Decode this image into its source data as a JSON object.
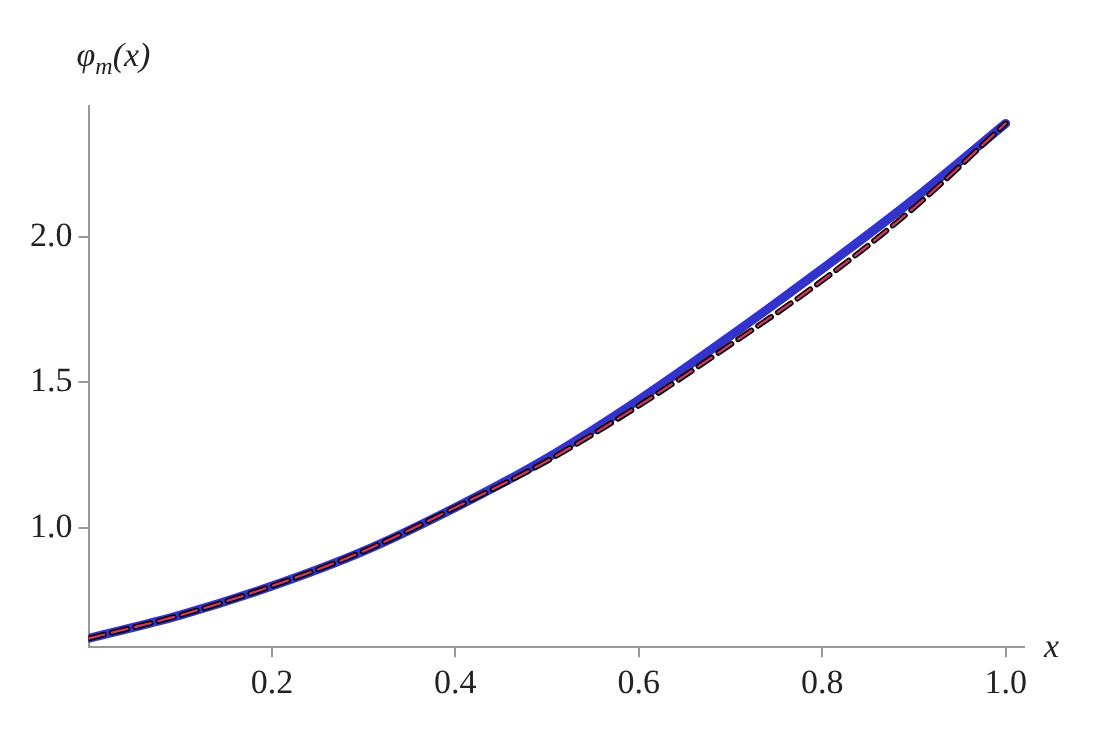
{
  "chart_data": {
    "type": "line",
    "xlabel": "x",
    "ylabel": "φ$_{m}$(x)",
    "x": [
      0,
      0.1,
      0.2,
      0.3,
      0.4,
      0.5,
      0.6,
      0.7,
      0.8,
      0.9,
      1.0
    ],
    "series": [
      {
        "color": "#3333cc",
        "line_style": "solid",
        "values": [
          0.62,
          0.7,
          0.8,
          0.92,
          1.07,
          1.24,
          1.44,
          1.66,
          1.89,
          2.13,
          2.39
        ]
      },
      {
        "color": "#000000",
        "line_style": "dashed",
        "values": [
          0.62,
          0.7,
          0.8,
          0.92,
          1.07,
          1.23,
          1.42,
          1.63,
          1.85,
          2.1,
          2.39
        ]
      },
      {
        "color": "#cc3366",
        "line_style": "dashed",
        "values": [
          0.62,
          0.7,
          0.8,
          0.92,
          1.07,
          1.23,
          1.42,
          1.63,
          1.85,
          2.1,
          2.39
        ]
      }
    ],
    "xlim": [
      0,
      1.02
    ],
    "ylim": [
      0.59,
      2.45
    ],
    "xticks": [
      {
        "value": 0.2,
        "label": "0.2"
      },
      {
        "value": 0.4,
        "label": "0.4"
      },
      {
        "value": 0.6,
        "label": "0.6"
      },
      {
        "value": 0.8,
        "label": "0.8"
      },
      {
        "value": 1.0,
        "label": "1.0"
      }
    ],
    "yticks": [
      {
        "value": 1.0,
        "label": "1.0"
      },
      {
        "value": 1.5,
        "label": "1.5"
      },
      {
        "value": 2.0,
        "label": "2.0"
      }
    ],
    "grid": false,
    "legend": false,
    "marker": "none"
  }
}
